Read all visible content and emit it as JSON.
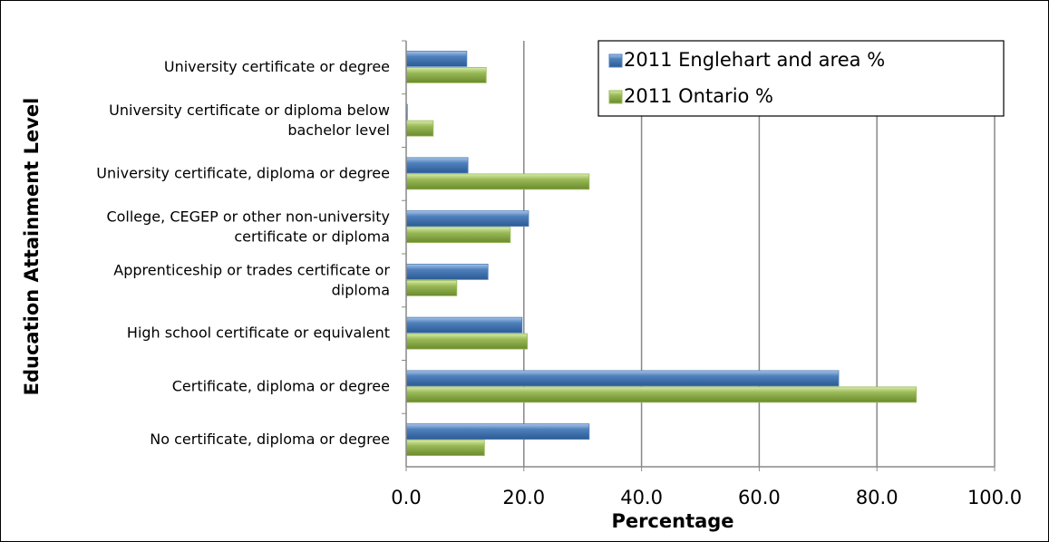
{
  "chart_data": {
    "type": "hbar",
    "x_label": "Percentage",
    "y_label": "Education Attainment Level",
    "categories": [
      "University certificate or degree",
      "University certificate or diploma below\nbachelor level",
      "University certificate, diploma or degree",
      "College, CEGEP or other non-university\ncertificate or diploma",
      "Apprenticeship or trades certificate or\ndiploma",
      "High school certificate or equivalent",
      "Certificate, diploma or degree",
      "No certificate, diploma or degree"
    ],
    "series": [
      {
        "name": "2011 Englehart and area %",
        "color": "#4f81bd",
        "values": [
          10.3,
          0.2,
          10.5,
          20.8,
          13.9,
          19.7,
          73.5,
          31.1
        ]
      },
      {
        "name": "2011 Ontario %",
        "color": "#9bbb59",
        "values": [
          13.6,
          4.6,
          31.1,
          17.7,
          8.6,
          20.6,
          86.7,
          13.3
        ]
      }
    ],
    "xlim": [
      0,
      100
    ],
    "xticks": [
      {
        "value": 0,
        "label": "0.0"
      },
      {
        "value": 20,
        "label": "20.0"
      },
      {
        "value": 40,
        "label": "40.0"
      },
      {
        "value": 60,
        "label": "60.0"
      },
      {
        "value": 80,
        "label": "80.0"
      },
      {
        "value": 100,
        "label": "100.0"
      }
    ],
    "grid": true,
    "legend": "top-right"
  }
}
